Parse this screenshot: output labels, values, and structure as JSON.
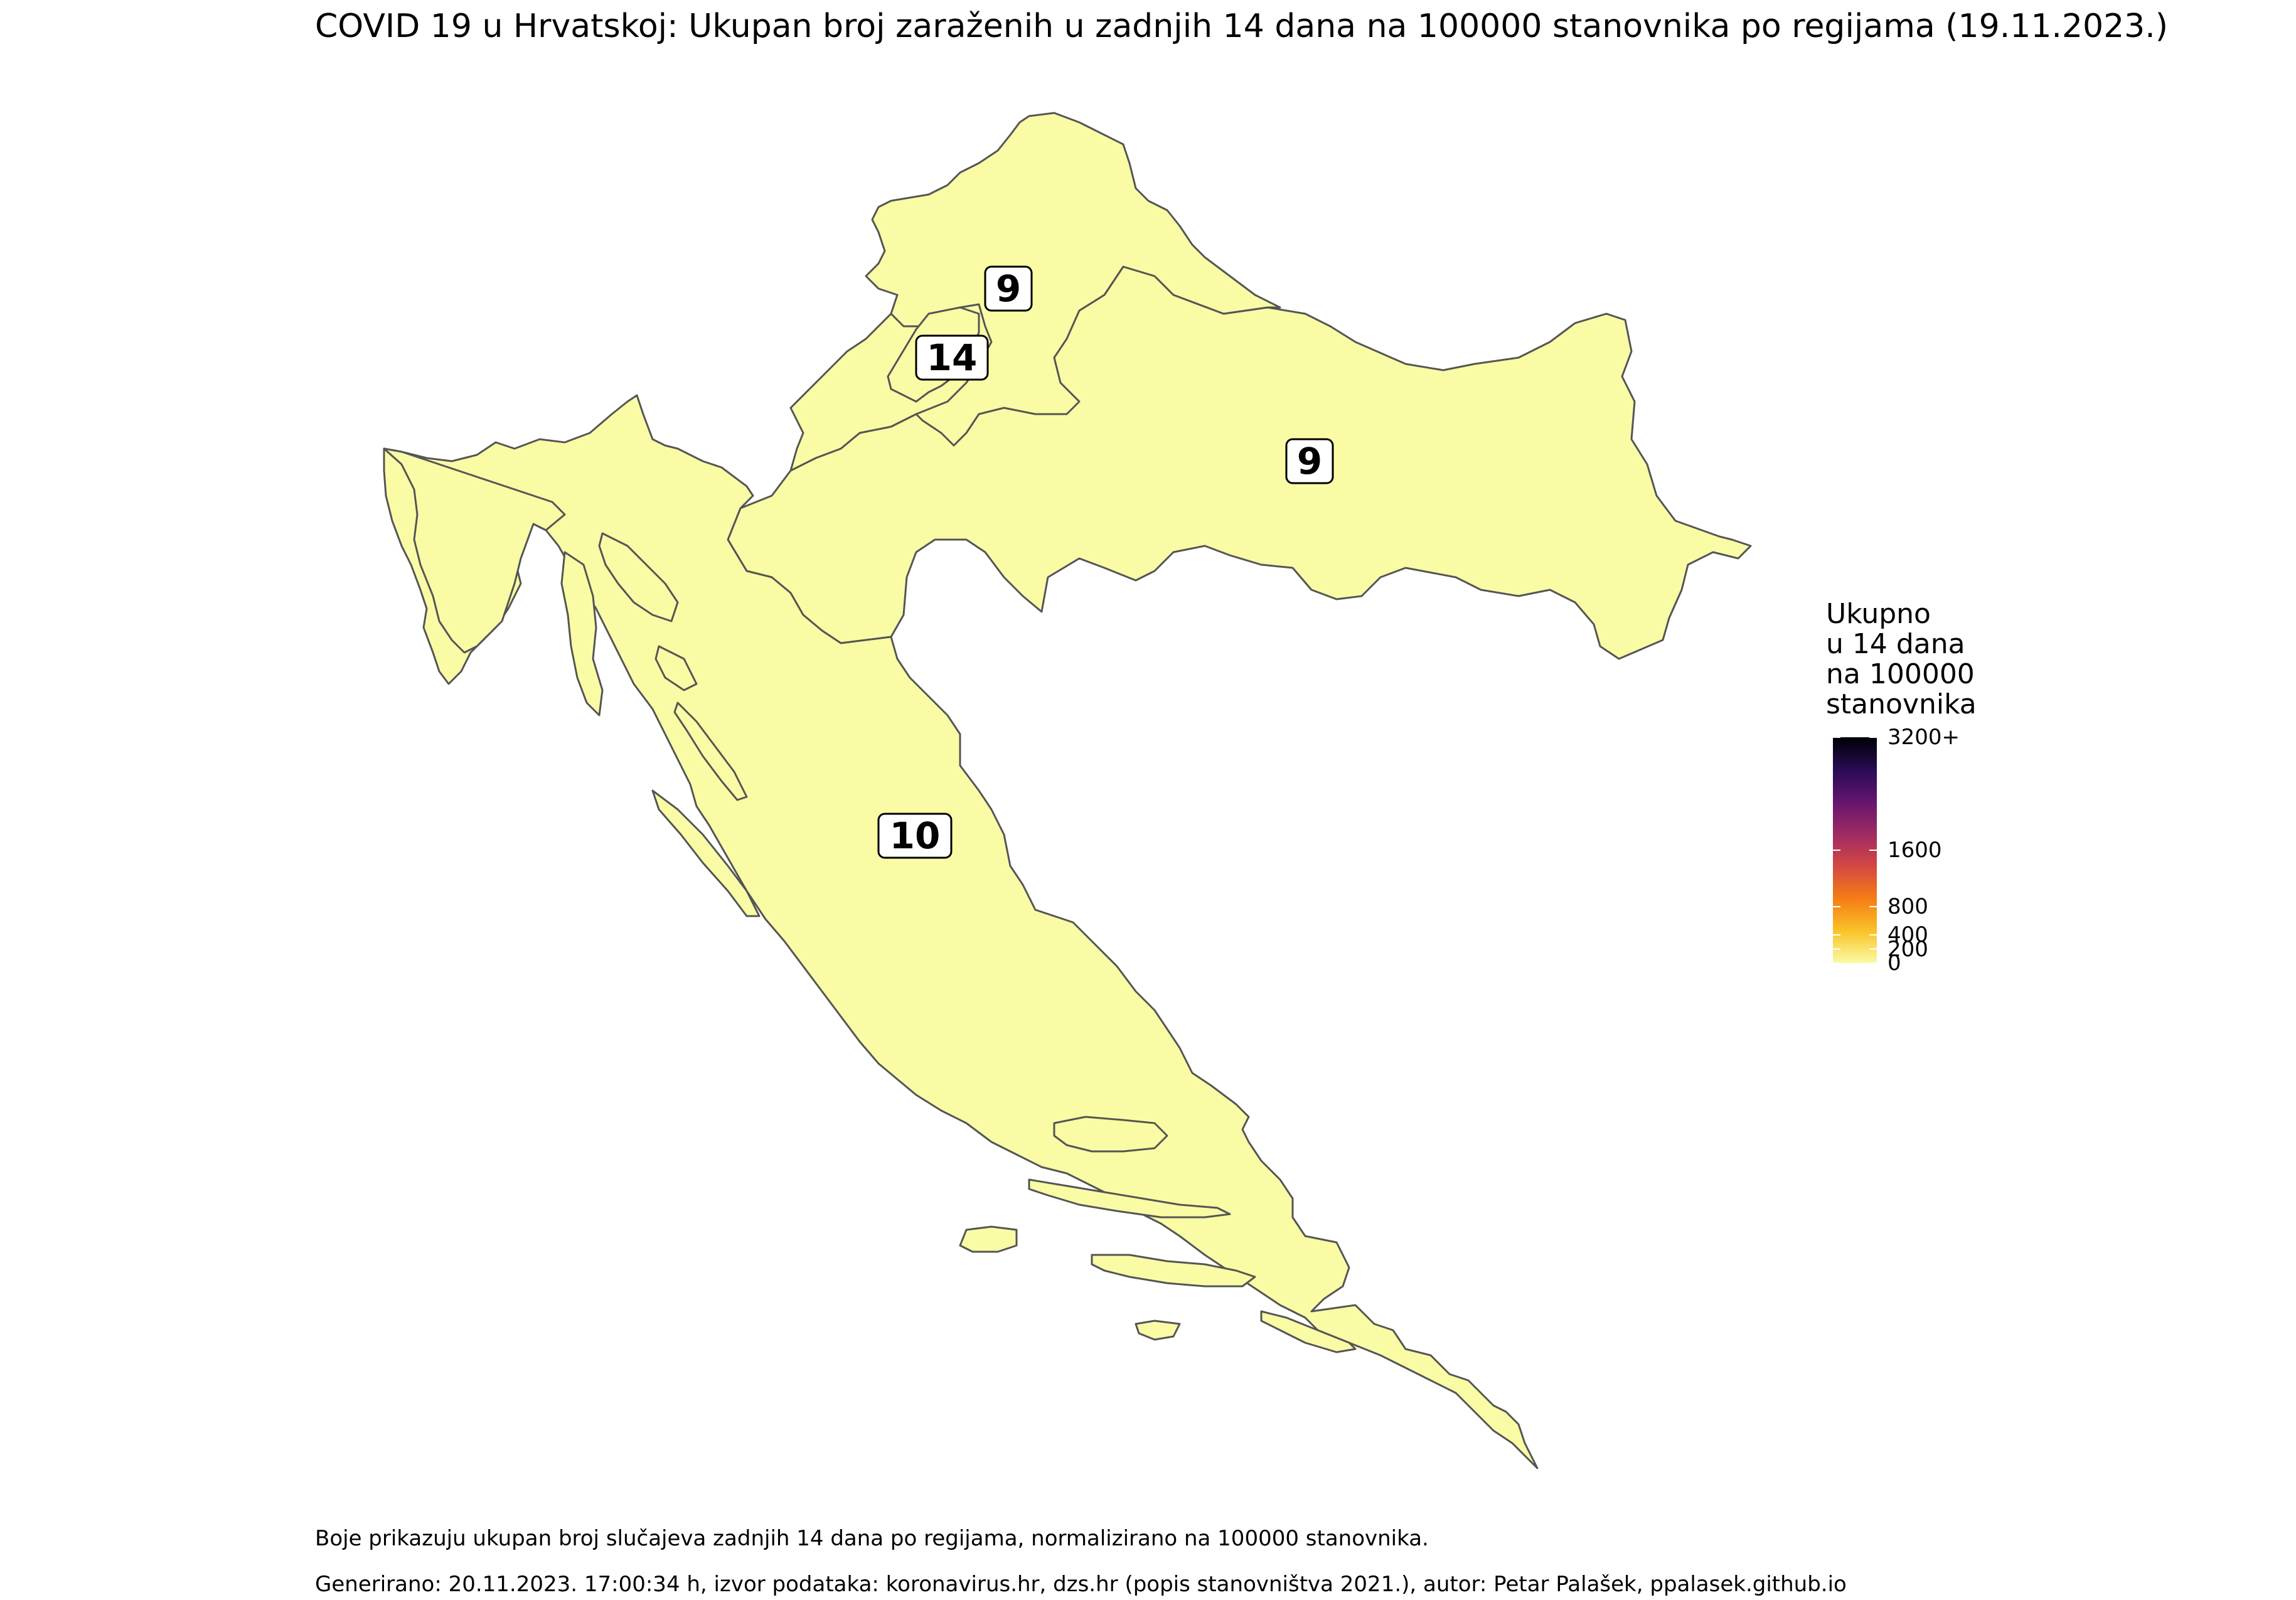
{
  "title": "COVID 19 u Hrvatskoj: Ukupan broj zaraženih u zadnjih 14 dana na 100000 stanovnika po regijama (19.11.2023.)",
  "map": {
    "fill_color": "#f9fca4",
    "border_color": "#555555",
    "region_labels": [
      {
        "value": "9"
      },
      {
        "value": "14"
      },
      {
        "value": "9"
      },
      {
        "value": "10"
      }
    ]
  },
  "legend": {
    "title_lines": [
      "Ukupno",
      "u 14 dana",
      "na 100000",
      "stanovnika"
    ],
    "scale_max": 3200,
    "ticks": [
      {
        "value": 3200,
        "label": "3200+"
      },
      {
        "value": 1600,
        "label": "1600"
      },
      {
        "value": 800,
        "label": "800"
      },
      {
        "value": 400,
        "label": "400"
      },
      {
        "value": 200,
        "label": "200"
      },
      {
        "value": 0,
        "label": "0"
      }
    ],
    "gradient_colors": [
      "#f9fca4",
      "#fac228",
      "#f57d15",
      "#d44842",
      "#9f2a63",
      "#65156e",
      "#280b53",
      "#000004"
    ]
  },
  "caption": "Boje prikazuju ukupan broj slučajeva zadnjih 14 dana po regijama, normalizirano na 100000 stanovnika.",
  "credits": "Generirano: 20.11.2023. 17:00:34 h, izvor podataka: koronavirus.hr, dzs.hr (popis stanovništva 2021.), autor: Petar Palašek, ppalasek.github.io"
}
